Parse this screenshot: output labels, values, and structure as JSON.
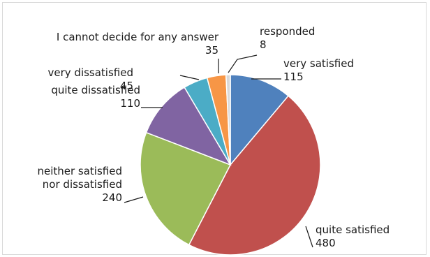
{
  "chart_data": {
    "type": "pie",
    "categories": [
      "very satisfied",
      "quite satisfied",
      "neither satisfied nor dissatisfied",
      "quite dissatisfied",
      "very dissatisfied",
      "I cannot decide for any answer",
      "responded"
    ],
    "values": [
      115,
      480,
      240,
      110,
      45,
      35,
      8
    ],
    "colors": [
      "#4f81bd",
      "#c0504d",
      "#9bbb59",
      "#8064a2",
      "#4bacc6",
      "#f79646",
      "#d9d9d9"
    ],
    "label_lines": [
      [
        "very satisfied"
      ],
      [
        "quite satisfied"
      ],
      [
        "neither satisfied",
        "nor dissatisfied"
      ],
      [
        "quite dissatisfied"
      ],
      [
        "very dissatisfied"
      ],
      [
        "I cannot decide for any answer"
      ],
      [
        "responded"
      ]
    ],
    "value_labels": [
      "115",
      "480",
      "240",
      "110",
      "45",
      "35",
      "8"
    ],
    "start_angle_deg": 0,
    "direction": "clockwise",
    "legend": "none"
  }
}
